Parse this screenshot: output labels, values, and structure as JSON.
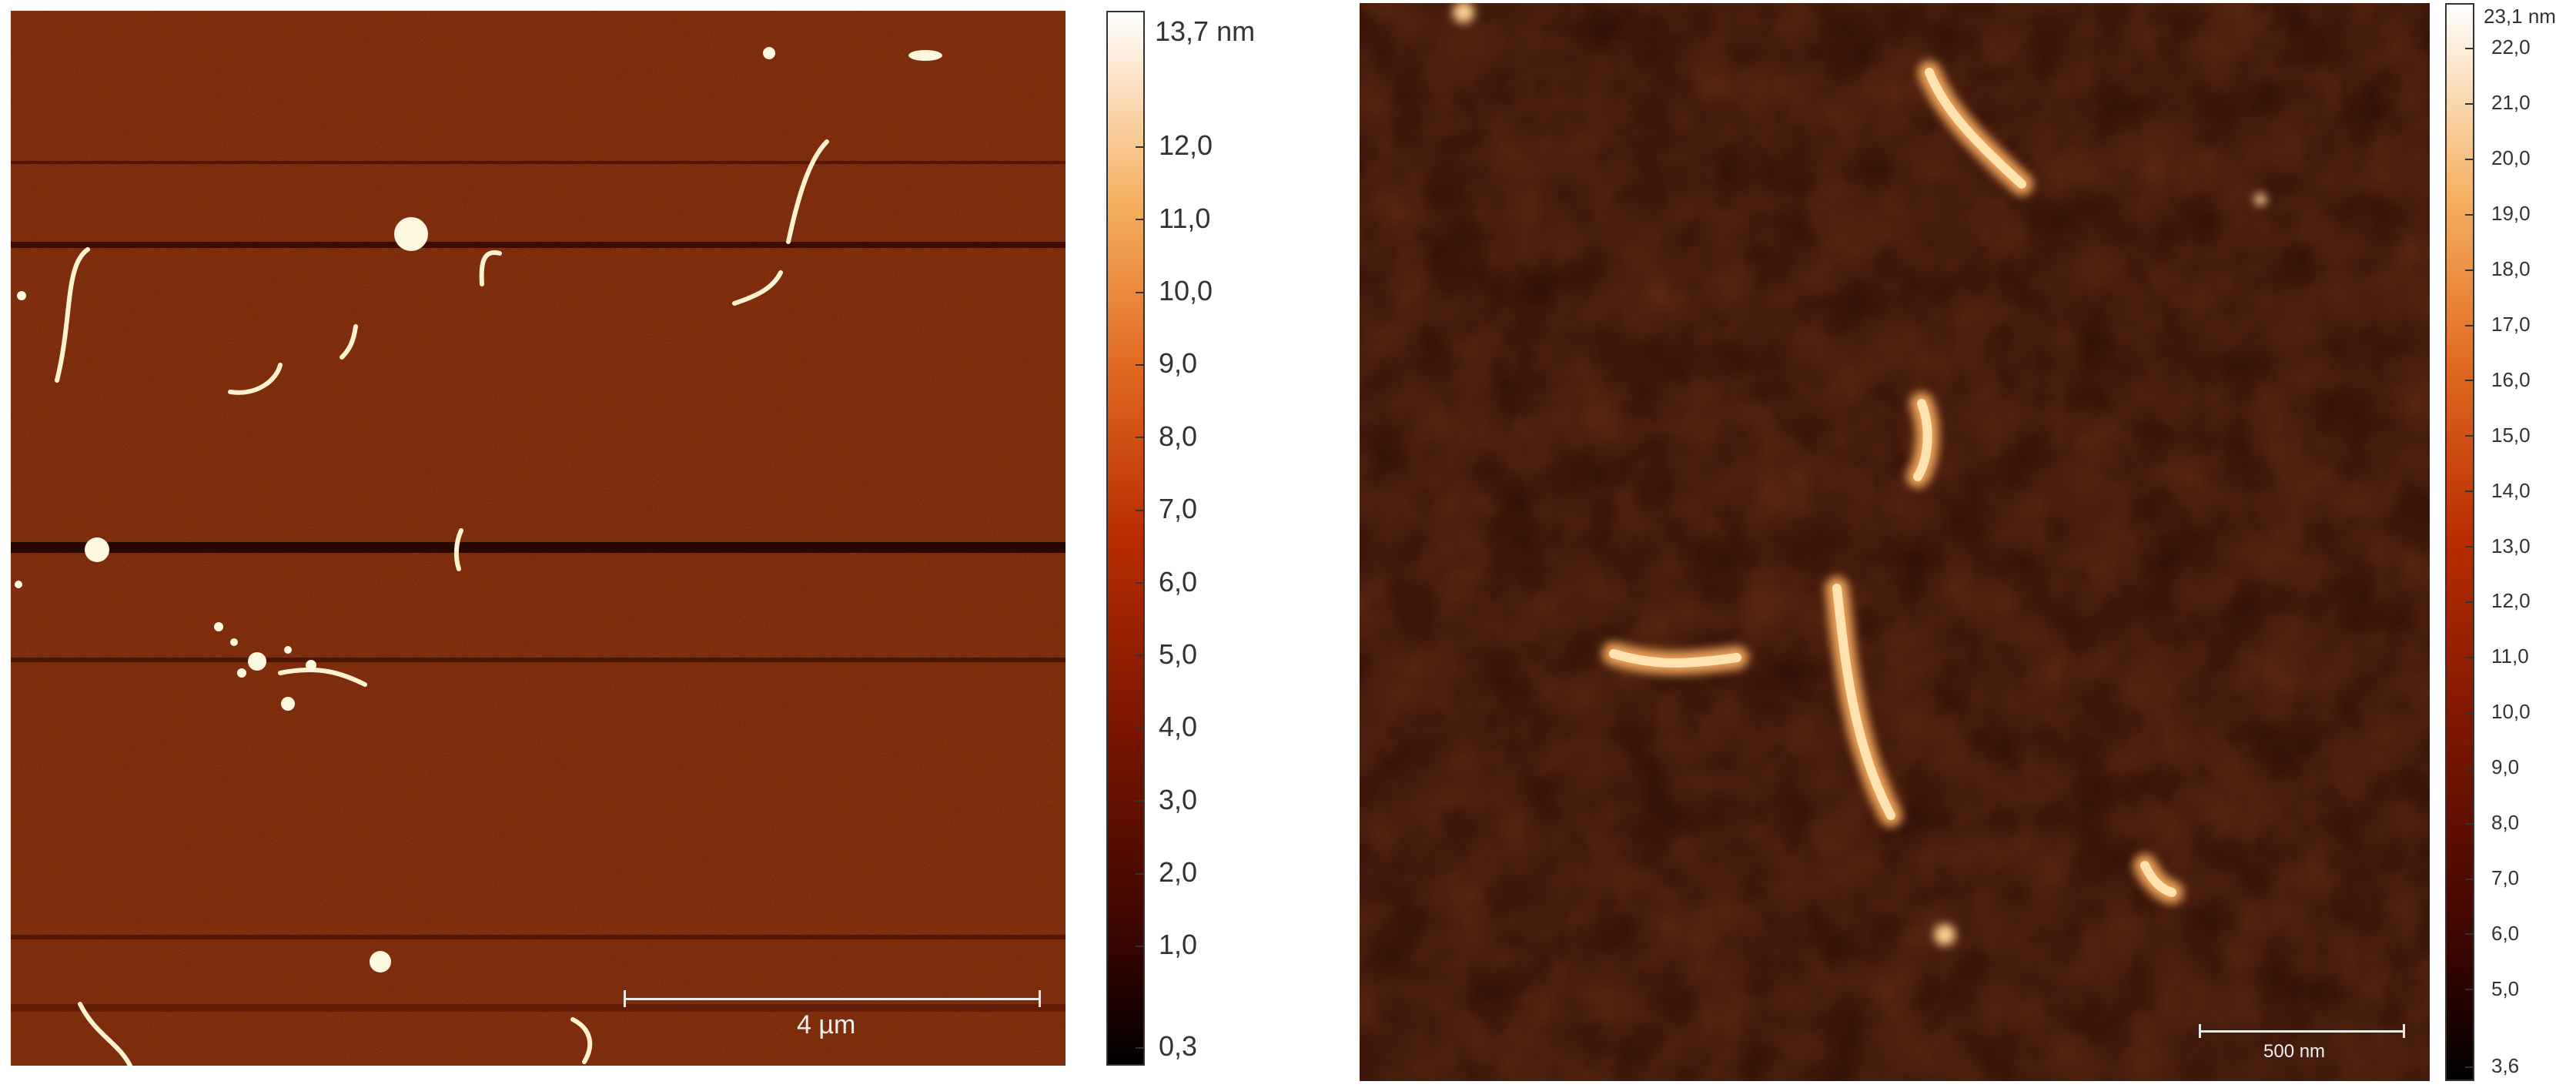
{
  "left_panel": {
    "colorbar": {
      "max_label": "13,7 nm",
      "ticks": [
        "12,0",
        "11,0",
        "10,0",
        "9,0",
        "8,0",
        "7,0",
        "6,0",
        "5,0",
        "4,0",
        "3,0",
        "2,0",
        "1,0",
        "0,3"
      ],
      "colors": [
        "#000000",
        "#3a0500",
        "#7a1600",
        "#b82c00",
        "#e06820",
        "#f5b060",
        "#ffffff"
      ]
    },
    "scale_bar": {
      "label": "4 µm"
    }
  },
  "right_panel": {
    "colorbar": {
      "max_label": "23,1 nm",
      "ticks": [
        "22,0",
        "21,0",
        "20,0",
        "19,0",
        "18,0",
        "17,0",
        "16,0",
        "15,0",
        "14,0",
        "13,0",
        "12,0",
        "11,0",
        "10,0",
        "9,0",
        "8,0",
        "7,0",
        "6,0",
        "5,0",
        "3,6"
      ],
      "colors": [
        "#000000",
        "#3a0500",
        "#7a1600",
        "#b82c00",
        "#e06820",
        "#f5b060",
        "#ffffff"
      ]
    },
    "scale_bar": {
      "label": "500 nm"
    }
  }
}
